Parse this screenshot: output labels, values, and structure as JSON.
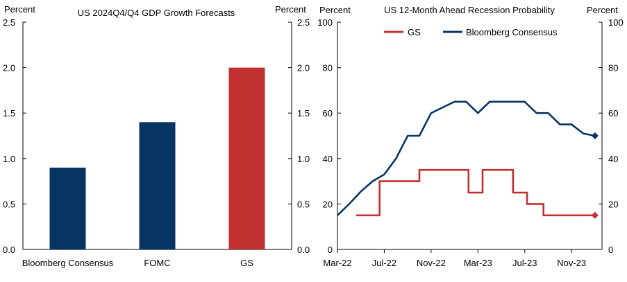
{
  "chart_data": [
    {
      "type": "bar",
      "title": "US 2024Q4/Q4  GDP Growth Forecasts",
      "ylabel_left": "Percent",
      "ylabel_right": "Percent",
      "categories": [
        "Bloomberg Consensus",
        "FOMC",
        "GS"
      ],
      "values": [
        0.9,
        1.4,
        2.0
      ],
      "bar_colors": [
        "#063463",
        "#063463",
        "#c0302f"
      ],
      "ylim": [
        0,
        2.5
      ],
      "yticks": [
        "0.0",
        "0.5",
        "1.0",
        "1.5",
        "2.0",
        "2.5"
      ]
    },
    {
      "type": "line",
      "title": "US 12-Month  Ahead  Recession Probability",
      "ylabel_left": "Percent",
      "ylabel_right": "Percent",
      "ylim": [
        0,
        100
      ],
      "yticks": [
        "0",
        "20",
        "40",
        "60",
        "80",
        "100"
      ],
      "x_range": [
        0,
        22.6
      ],
      "x_unit": "months since Mar-22",
      "xticks": [
        {
          "pos": 0,
          "label": "Mar-22"
        },
        {
          "pos": 4,
          "label": "Jul-22"
        },
        {
          "pos": 8,
          "label": "Nov-22"
        },
        {
          "pos": 12,
          "label": "Mar-23"
        },
        {
          "pos": 16,
          "label": "Jul-23"
        },
        {
          "pos": 20,
          "label": "Nov-23"
        }
      ],
      "legend_position": "top",
      "series": [
        {
          "name": "GS",
          "color": "#c0302f",
          "points": [
            [
              1.6,
              15
            ],
            [
              3.6,
              15
            ],
            [
              3.6,
              30
            ],
            [
              7.0,
              30
            ],
            [
              7.0,
              35
            ],
            [
              11.2,
              35
            ],
            [
              11.2,
              25
            ],
            [
              12.4,
              25
            ],
            [
              12.4,
              35
            ],
            [
              15.0,
              35
            ],
            [
              15.0,
              25
            ],
            [
              16.2,
              25
            ],
            [
              16.2,
              20
            ],
            [
              17.6,
              20
            ],
            [
              17.6,
              15
            ],
            [
              22.0,
              15
            ]
          ]
        },
        {
          "name": "Bloomberg Consensus",
          "color": "#063463",
          "points": [
            [
              0,
              15
            ],
            [
              1,
              20
            ],
            [
              2,
              25.5
            ],
            [
              3,
              30
            ],
            [
              4,
              33
            ],
            [
              5,
              40
            ],
            [
              6,
              50
            ],
            [
              7,
              50
            ],
            [
              8,
              60
            ],
            [
              9,
              62.5
            ],
            [
              10,
              65
            ],
            [
              11,
              65
            ],
            [
              12,
              60
            ],
            [
              13,
              65
            ],
            [
              14,
              65
            ],
            [
              15,
              65
            ],
            [
              16,
              65
            ],
            [
              17,
              60
            ],
            [
              18,
              60
            ],
            [
              19,
              55
            ],
            [
              20,
              55
            ],
            [
              21,
              51
            ],
            [
              22,
              50
            ]
          ]
        }
      ]
    }
  ]
}
